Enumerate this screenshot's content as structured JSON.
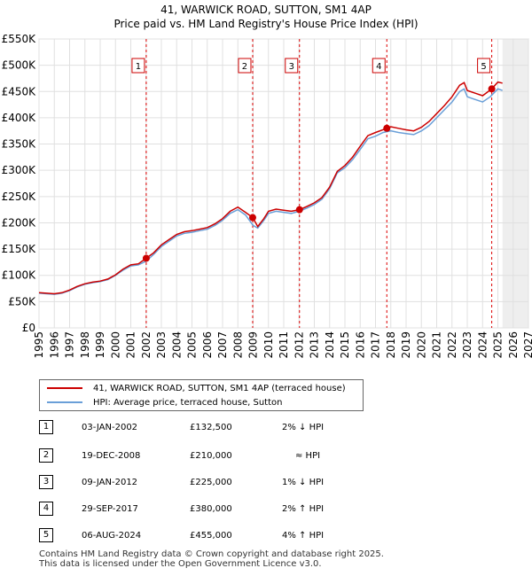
{
  "header": {
    "title_line1": "41, WARWICK ROAD, SUTTON, SM1 4AP",
    "title_line2": "Price paid vs. HM Land Registry's House Price Index (HPI)"
  },
  "chart_data": {
    "type": "line",
    "ylim": [
      0,
      550000
    ],
    "xlim": [
      1995,
      2027
    ],
    "yticks": [
      0,
      50000,
      100000,
      150000,
      200000,
      250000,
      300000,
      350000,
      400000,
      450000,
      500000,
      550000
    ],
    "ytick_labels": [
      "£0",
      "£50K",
      "£100K",
      "£150K",
      "£200K",
      "£250K",
      "£300K",
      "£350K",
      "£400K",
      "£450K",
      "£500K",
      "£550K"
    ],
    "xticks": [
      1995,
      1996,
      1997,
      1998,
      1999,
      2000,
      2001,
      2002,
      2003,
      2004,
      2005,
      2006,
      2007,
      2008,
      2009,
      2010,
      2011,
      2012,
      2013,
      2014,
      2015,
      2016,
      2017,
      2018,
      2019,
      2020,
      2021,
      2022,
      2023,
      2024,
      2025,
      2026,
      2027
    ],
    "xtick_labels": [
      "1995",
      "1996",
      "1997",
      "1998",
      "1999",
      "2000",
      "2001",
      "2002",
      "2003",
      "2004",
      "2005",
      "2006",
      "2007",
      "2008",
      "2009",
      "2010",
      "2011",
      "2012",
      "2013",
      "2014",
      "2015",
      "2016",
      "2017",
      "2018",
      "2019",
      "2020",
      "2021",
      "2022",
      "2023",
      "2024",
      "2025",
      "2026",
      "2027"
    ],
    "forecast_from": 2025.3,
    "hpi_points": [
      [
        1995.0,
        66000
      ],
      [
        1995.5,
        65000
      ],
      [
        1996.0,
        64000
      ],
      [
        1996.5,
        66000
      ],
      [
        1997.0,
        71000
      ],
      [
        1997.5,
        78000
      ],
      [
        1998.0,
        83000
      ],
      [
        1998.5,
        86000
      ],
      [
        1999.0,
        88000
      ],
      [
        1999.5,
        92000
      ],
      [
        2000.0,
        100000
      ],
      [
        2000.5,
        110000
      ],
      [
        2001.0,
        118000
      ],
      [
        2001.5,
        120000
      ],
      [
        2002.0,
        127000
      ],
      [
        2002.5,
        140000
      ],
      [
        2003.0,
        155000
      ],
      [
        2003.5,
        165000
      ],
      [
        2004.0,
        175000
      ],
      [
        2004.5,
        180000
      ],
      [
        2005.0,
        182000
      ],
      [
        2005.5,
        185000
      ],
      [
        2006.0,
        188000
      ],
      [
        2006.5,
        195000
      ],
      [
        2007.0,
        205000
      ],
      [
        2007.5,
        218000
      ],
      [
        2008.0,
        225000
      ],
      [
        2008.5,
        215000
      ],
      [
        2009.0,
        195000
      ],
      [
        2009.3,
        190000
      ],
      [
        2009.7,
        205000
      ],
      [
        2010.0,
        218000
      ],
      [
        2010.5,
        222000
      ],
      [
        2011.0,
        220000
      ],
      [
        2011.5,
        218000
      ],
      [
        2012.0,
        222000
      ],
      [
        2012.5,
        228000
      ],
      [
        2013.0,
        235000
      ],
      [
        2013.5,
        245000
      ],
      [
        2014.0,
        265000
      ],
      [
        2014.5,
        295000
      ],
      [
        2015.0,
        305000
      ],
      [
        2015.5,
        320000
      ],
      [
        2016.0,
        340000
      ],
      [
        2016.5,
        360000
      ],
      [
        2017.0,
        365000
      ],
      [
        2017.5,
        372000
      ],
      [
        2018.0,
        375000
      ],
      [
        2018.5,
        372000
      ],
      [
        2019.0,
        370000
      ],
      [
        2019.5,
        368000
      ],
      [
        2020.0,
        375000
      ],
      [
        2020.5,
        385000
      ],
      [
        2021.0,
        400000
      ],
      [
        2021.5,
        415000
      ],
      [
        2022.0,
        430000
      ],
      [
        2022.5,
        450000
      ],
      [
        2022.8,
        455000
      ],
      [
        2023.0,
        440000
      ],
      [
        2023.5,
        435000
      ],
      [
        2024.0,
        430000
      ],
      [
        2024.5,
        440000
      ],
      [
        2025.0,
        455000
      ],
      [
        2025.3,
        452000
      ]
    ],
    "series": [
      {
        "name": "41, WARWICK ROAD, SUTTON, SM1 4AP (terraced house)",
        "color": "#cc0000",
        "points": [
          [
            1995.0,
            67000
          ],
          [
            1995.5,
            66000
          ],
          [
            1996.0,
            65000
          ],
          [
            1996.5,
            67000
          ],
          [
            1997.0,
            72000
          ],
          [
            1997.5,
            79000
          ],
          [
            1998.0,
            84000
          ],
          [
            1998.5,
            87000
          ],
          [
            1999.0,
            89000
          ],
          [
            1999.5,
            93000
          ],
          [
            2000.0,
            101000
          ],
          [
            2000.5,
            112000
          ],
          [
            2001.0,
            120000
          ],
          [
            2001.5,
            122000
          ],
          [
            2002.0,
            132500
          ],
          [
            2002.5,
            143000
          ],
          [
            2003.0,
            158000
          ],
          [
            2003.5,
            168000
          ],
          [
            2004.0,
            178000
          ],
          [
            2004.5,
            183000
          ],
          [
            2005.0,
            185000
          ],
          [
            2005.5,
            188000
          ],
          [
            2006.0,
            191000
          ],
          [
            2006.5,
            198000
          ],
          [
            2007.0,
            208000
          ],
          [
            2007.5,
            222000
          ],
          [
            2008.0,
            230000
          ],
          [
            2008.5,
            220000
          ],
          [
            2008.97,
            210000
          ],
          [
            2009.3,
            193000
          ],
          [
            2009.7,
            208000
          ],
          [
            2010.0,
            222000
          ],
          [
            2010.5,
            226000
          ],
          [
            2011.0,
            224000
          ],
          [
            2011.5,
            222000
          ],
          [
            2012.03,
            225000
          ],
          [
            2012.5,
            231000
          ],
          [
            2013.0,
            238000
          ],
          [
            2013.5,
            248000
          ],
          [
            2014.0,
            268000
          ],
          [
            2014.5,
            298000
          ],
          [
            2015.0,
            309000
          ],
          [
            2015.5,
            325000
          ],
          [
            2016.0,
            346000
          ],
          [
            2016.5,
            366000
          ],
          [
            2017.0,
            372000
          ],
          [
            2017.74,
            380000
          ],
          [
            2018.0,
            383000
          ],
          [
            2018.5,
            380000
          ],
          [
            2019.0,
            377000
          ],
          [
            2019.5,
            375000
          ],
          [
            2020.0,
            382000
          ],
          [
            2020.5,
            393000
          ],
          [
            2021.0,
            408000
          ],
          [
            2021.5,
            423000
          ],
          [
            2022.0,
            440000
          ],
          [
            2022.5,
            462000
          ],
          [
            2022.8,
            467000
          ],
          [
            2023.0,
            452000
          ],
          [
            2023.5,
            447000
          ],
          [
            2024.0,
            442000
          ],
          [
            2024.6,
            455000
          ],
          [
            2025.0,
            468000
          ],
          [
            2025.3,
            466000
          ]
        ]
      },
      {
        "name": "HPI: Average price, terraced house, Sutton",
        "color": "#6a9fd8"
      }
    ],
    "sales": [
      {
        "n": "1",
        "x": 2002.01,
        "y": 132500,
        "date": "03-JAN-2002",
        "price": "£132,500",
        "rel": "2% ↓ HPI"
      },
      {
        "n": "2",
        "x": 2008.97,
        "y": 210000,
        "date": "19-DEC-2008",
        "price": "£210,000",
        "rel": "≈ HPI"
      },
      {
        "n": "3",
        "x": 2012.03,
        "y": 225000,
        "date": "09-JAN-2012",
        "price": "£225,000",
        "rel": "1% ↓ HPI"
      },
      {
        "n": "4",
        "x": 2017.74,
        "y": 380000,
        "date": "29-SEP-2017",
        "price": "£380,000",
        "rel": "2% ↑ HPI"
      },
      {
        "n": "5",
        "x": 2024.6,
        "y": 455000,
        "date": "06-AUG-2024",
        "price": "£455,000",
        "rel": "4% ↑ HPI"
      }
    ]
  },
  "legend": {
    "property_label": "41, WARWICK ROAD, SUTTON, SM1 4AP (terraced house)",
    "hpi_label": "HPI: Average price, terraced house, Sutton",
    "property_color": "#cc0000",
    "hpi_color": "#6a9fd8"
  },
  "footer": {
    "line1": "Contains HM Land Registry data © Crown copyright and database right 2025.",
    "line2": "This data is licensed under the Open Government Licence v3.0."
  }
}
